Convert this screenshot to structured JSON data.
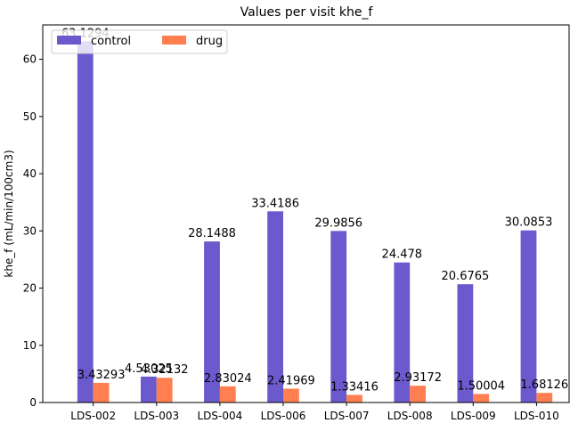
{
  "chart_data": {
    "type": "bar",
    "title": "Values per visit khe_f",
    "xlabel": "",
    "ylabel": "khe_f (mL/min/100cm3)",
    "ylim": [
      0,
      66
    ],
    "yticks": [
      0,
      10,
      20,
      30,
      40,
      50,
      60
    ],
    "ytick_labels": [
      "0",
      "10",
      "20",
      "30",
      "40",
      "50",
      "60"
    ],
    "categories": [
      "LDS-002",
      "LDS-003",
      "LDS-004",
      "LDS-006",
      "LDS-007",
      "LDS-008",
      "LDS-009",
      "LDS-010"
    ],
    "series": [
      {
        "name": "control",
        "color": "#6a5acd",
        "values": [
          63.1294,
          4.53025,
          28.1488,
          33.4186,
          29.9856,
          24.478,
          20.6765,
          30.0853
        ],
        "labels": [
          "63.1294",
          "4.53025",
          "28.1488",
          "33.4186",
          "29.9856",
          "24.478",
          "20.6765",
          "30.0853"
        ]
      },
      {
        "name": "drug",
        "color": "#ff7f50",
        "values": [
          3.43293,
          4.32132,
          2.83024,
          2.41969,
          1.33416,
          2.93172,
          1.50004,
          1.68126
        ],
        "labels": [
          "3.43293",
          "4.32132",
          "2.83024",
          "2.41969",
          "1.33416",
          "2.93172",
          "1.50004",
          "1.68126"
        ]
      }
    ],
    "legend": {
      "placement": "top-left",
      "columns": 2
    },
    "grid": false
  }
}
